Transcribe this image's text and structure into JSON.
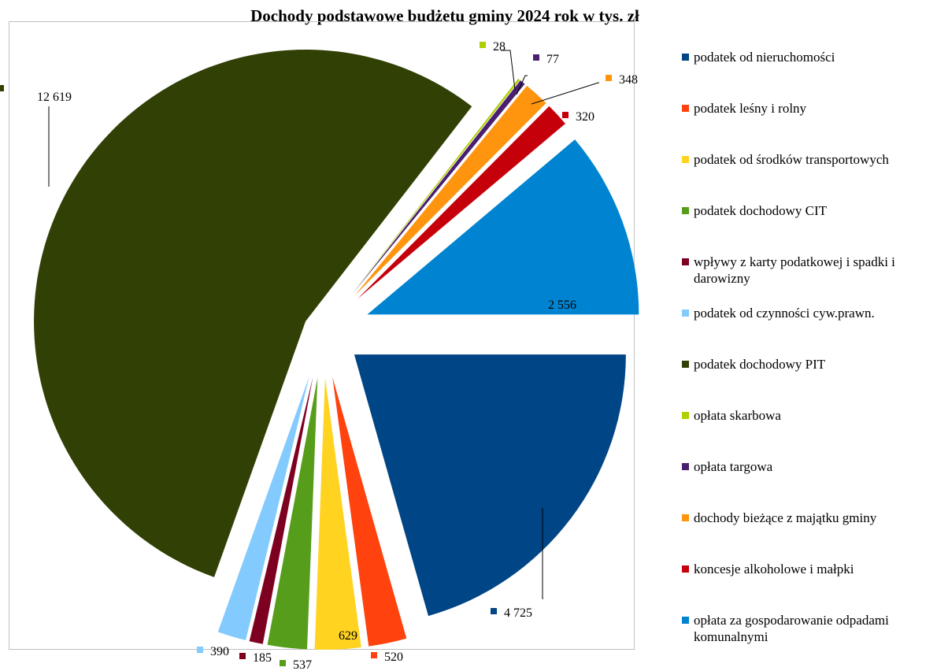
{
  "chart_data": {
    "type": "pie",
    "title": "Dochody podstawowe  budżetu gminy 2024 rok w tys. zł",
    "legend_position": "right",
    "slices": [
      {
        "label": "podatek od nieruchomości",
        "value": 4725,
        "display": "4 725",
        "color": "#004586"
      },
      {
        "label": "podatek leśny i rolny",
        "value": 520,
        "display": "520",
        "color": "#ff420e"
      },
      {
        "label": "podatek od środków transportowych",
        "value": 629,
        "display": "629",
        "color": "#ffd320"
      },
      {
        "label": "podatek dochodowy CIT",
        "value": 537,
        "display": "537",
        "color": "#579d1c"
      },
      {
        "label": "wpływy z karty podatkowej i spadki i darowizny",
        "value": 185,
        "display": "185",
        "color": "#7e0021"
      },
      {
        "label": "podatek od czynności cyw.prawn.",
        "value": 390,
        "display": "390",
        "color": "#83caff"
      },
      {
        "label": "podatek dochodowy PIT",
        "value": 12619,
        "display": "12 619",
        "color": "#314004"
      },
      {
        "label": "opłata skarbowa",
        "value": 28,
        "display": "28",
        "color": "#aecf00"
      },
      {
        "label": "opłata targowa",
        "value": 77,
        "display": "77",
        "color": "#4b1f6f"
      },
      {
        "label": "dochody bieżące z majątku gminy",
        "value": 348,
        "display": "348",
        "color": "#ff950e"
      },
      {
        "label": "koncesje alkoholowe i małpki",
        "value": 320,
        "display": "320",
        "color": "#c5000b"
      },
      {
        "label": "opłata za gospodarowanie odpadami komunalnymi",
        "value": 2556,
        "display": "2 556",
        "color": "#0084d1"
      }
    ]
  }
}
